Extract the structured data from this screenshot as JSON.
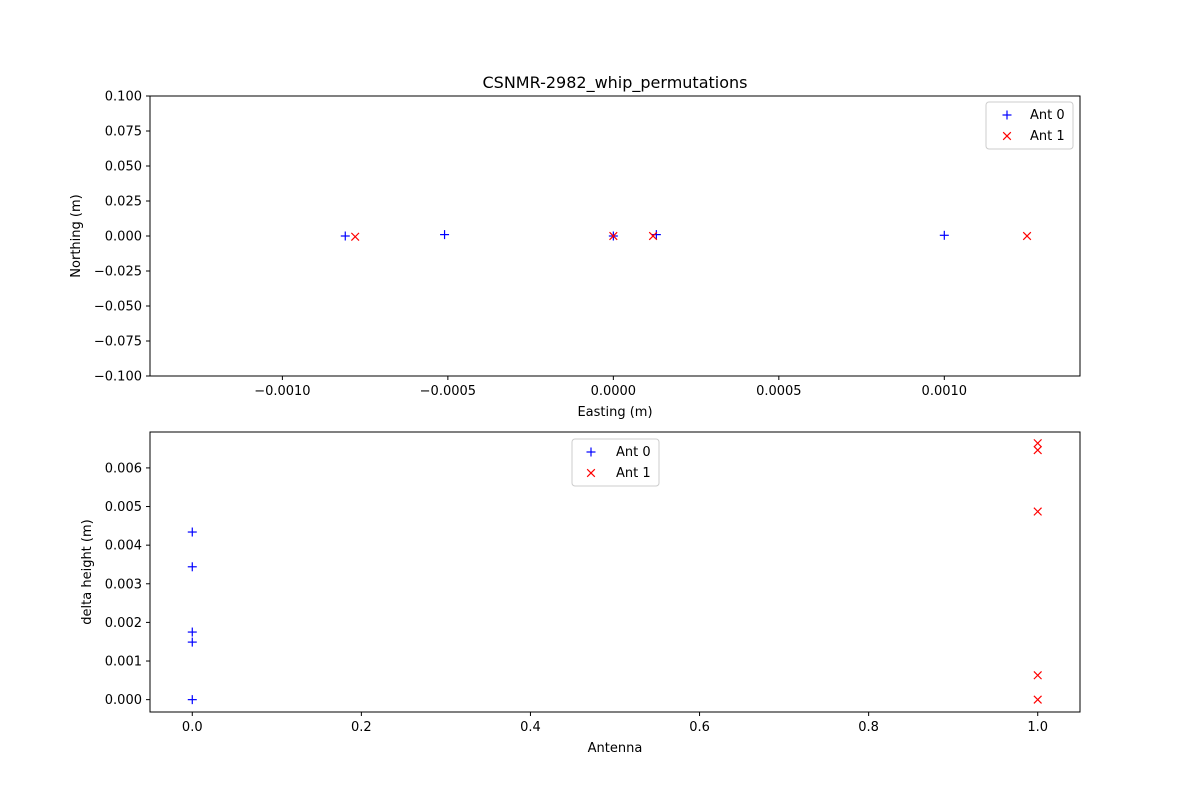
{
  "chart_data": [
    {
      "type": "scatter",
      "title": "CSNMR-2982_whip_permutations",
      "xlabel": "Easting (m)",
      "ylabel": "Northing (m)",
      "xlim": [
        -0.0014,
        0.00141
      ],
      "ylim": [
        -0.1,
        0.1
      ],
      "x_ticks": [
        -0.001,
        -0.0005,
        0.0,
        0.0005,
        0.001
      ],
      "x_tick_labels": [
        "−0.0010",
        "−0.0005",
        "0.0000",
        "0.0005",
        "0.0010"
      ],
      "y_ticks": [
        -0.1,
        -0.075,
        -0.05,
        -0.025,
        0.0,
        0.025,
        0.05,
        0.075,
        0.1
      ],
      "y_tick_labels": [
        "−0.100",
        "−0.075",
        "−0.050",
        "−0.025",
        "0.000",
        "0.025",
        "0.050",
        "0.075",
        "0.100"
      ],
      "grid": false,
      "legend_position": "upper-right",
      "series": [
        {
          "name": "Ant 0",
          "marker": "plus",
          "color": "#0000ff",
          "points": [
            {
              "x": -0.00081,
              "y": 0.0
            },
            {
              "x": -0.00051,
              "y": 0.001
            },
            {
              "x": 0.0,
              "y": 0.0
            },
            {
              "x": 0.00013,
              "y": 0.001
            },
            {
              "x": 0.001,
              "y": 0.0005
            }
          ]
        },
        {
          "name": "Ant 1",
          "marker": "x",
          "color": "#ff0000",
          "points": [
            {
              "x": -0.00078,
              "y": -0.0005
            },
            {
              "x": 0.0,
              "y": 0.0
            },
            {
              "x": 0.00012,
              "y": 0.0
            },
            {
              "x": 0.00125,
              "y": 0.0
            }
          ]
        }
      ]
    },
    {
      "type": "scatter",
      "title": "",
      "xlabel": "Antenna",
      "ylabel": "delta height (m)",
      "xlim": [
        -0.05,
        1.05
      ],
      "ylim": [
        -0.00032,
        0.00693
      ],
      "x_ticks": [
        0.0,
        0.2,
        0.4,
        0.6,
        0.8,
        1.0
      ],
      "x_tick_labels": [
        "0.0",
        "0.2",
        "0.4",
        "0.6",
        "0.8",
        "1.0"
      ],
      "y_ticks": [
        0.0,
        0.001,
        0.002,
        0.003,
        0.004,
        0.005,
        0.006
      ],
      "y_tick_labels": [
        "0.000",
        "0.001",
        "0.002",
        "0.003",
        "0.004",
        "0.005",
        "0.006"
      ],
      "grid": false,
      "legend_position": "upper-center",
      "series": [
        {
          "name": "Ant 0",
          "marker": "plus",
          "color": "#0000ff",
          "points": [
            {
              "x": 0.0,
              "y": 0.00434
            },
            {
              "x": 0.0,
              "y": 0.00344
            },
            {
              "x": 0.0,
              "y": 0.00175
            },
            {
              "x": 0.0,
              "y": 0.00149
            },
            {
              "x": 0.0,
              "y": 0.0
            }
          ]
        },
        {
          "name": "Ant 1",
          "marker": "x",
          "color": "#ff0000",
          "points": [
            {
              "x": 1.0,
              "y": 0.00664
            },
            {
              "x": 1.0,
              "y": 0.00646
            },
            {
              "x": 1.0,
              "y": 0.00487
            },
            {
              "x": 1.0,
              "y": 0.00063
            },
            {
              "x": 1.0,
              "y": 0.0
            }
          ]
        }
      ]
    }
  ]
}
